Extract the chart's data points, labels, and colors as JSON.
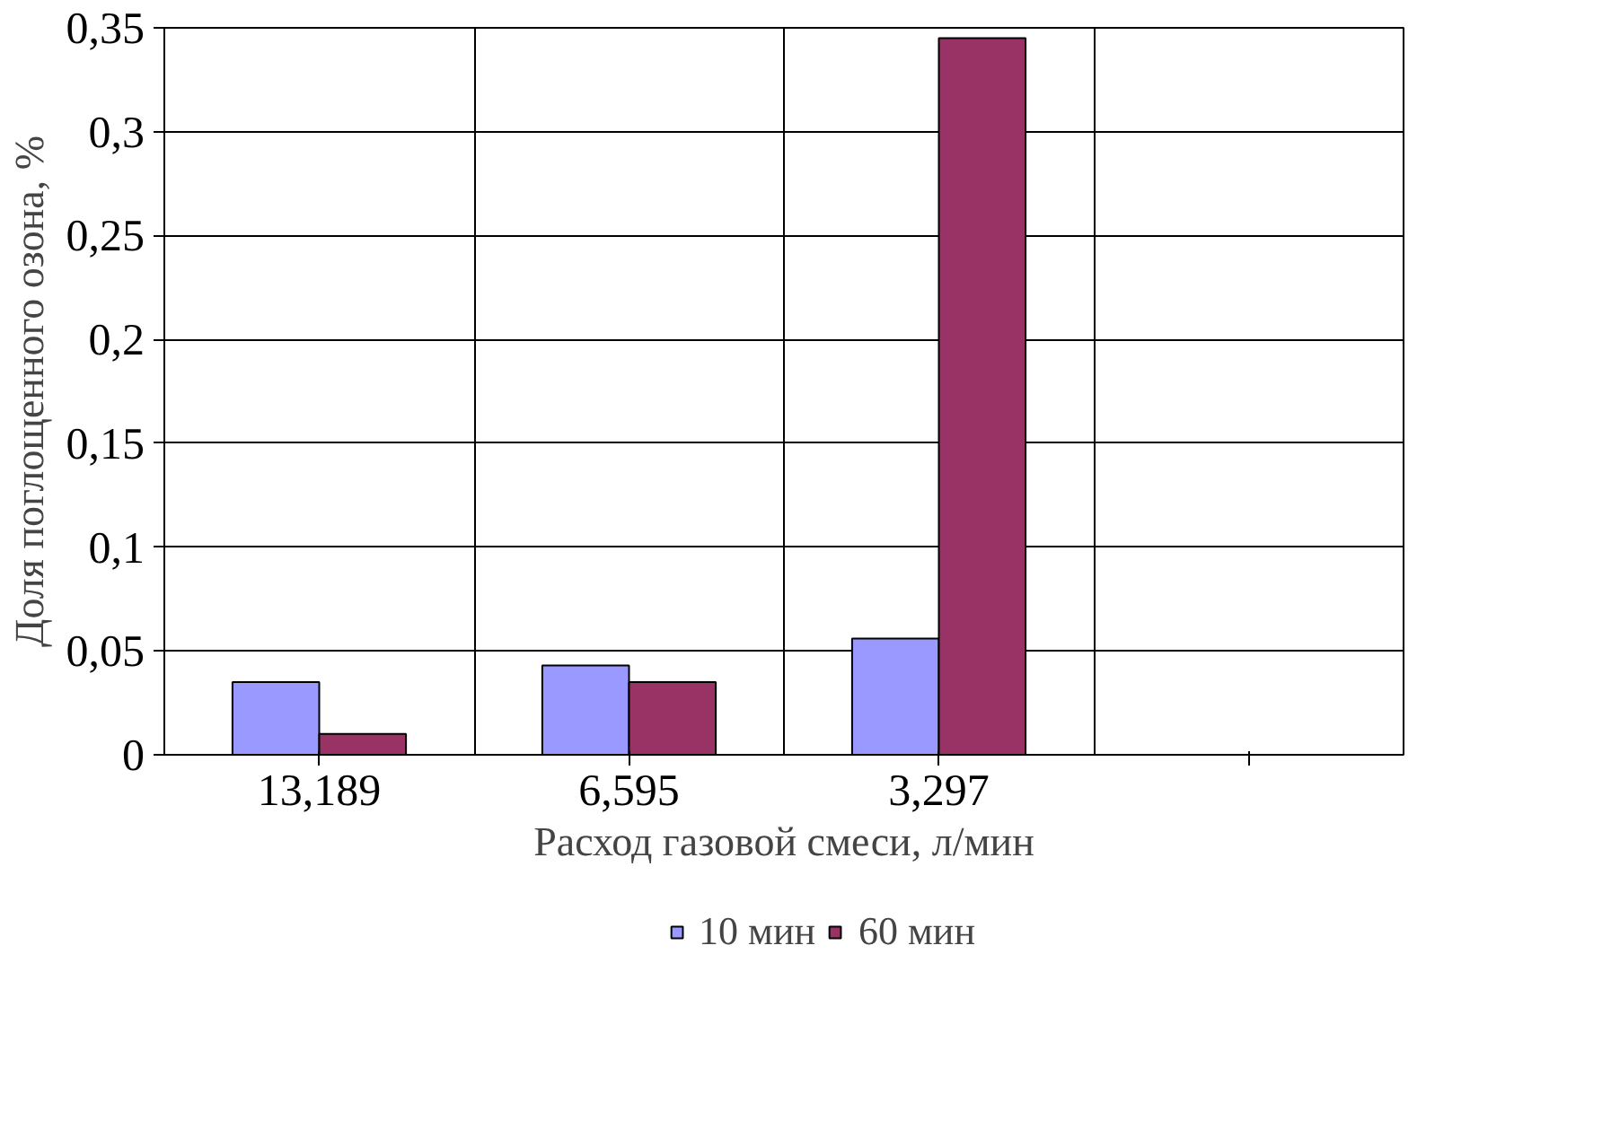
{
  "chart_data": {
    "type": "bar",
    "xlabel": "Расход газовой смеси, л/мин",
    "ylabel": "Доля поглощенного озона, %",
    "categories": [
      "13,189",
      "6,595",
      "3,297",
      null
    ],
    "series": [
      {
        "name": "10 мин",
        "color": "#9999ff",
        "values": [
          0.035,
          0.043,
          0.056,
          null
        ]
      },
      {
        "name": "60 мин",
        "color": "#993366",
        "values": [
          0.01,
          0.035,
          0.345,
          null
        ]
      }
    ],
    "ylim": [
      0,
      0.35
    ],
    "yticks": [
      {
        "value": 0,
        "label": "0"
      },
      {
        "value": 0.05,
        "label": "0,05"
      },
      {
        "value": 0.1,
        "label": "0,1"
      },
      {
        "value": 0.15,
        "label": "0,15"
      },
      {
        "value": 0.2,
        "label": "0,2"
      },
      {
        "value": 0.25,
        "label": "0,25"
      },
      {
        "value": 0.3,
        "label": "0,3"
      },
      {
        "value": 0.35,
        "label": "0,35"
      }
    ],
    "grid": true,
    "legend": "bottom"
  }
}
